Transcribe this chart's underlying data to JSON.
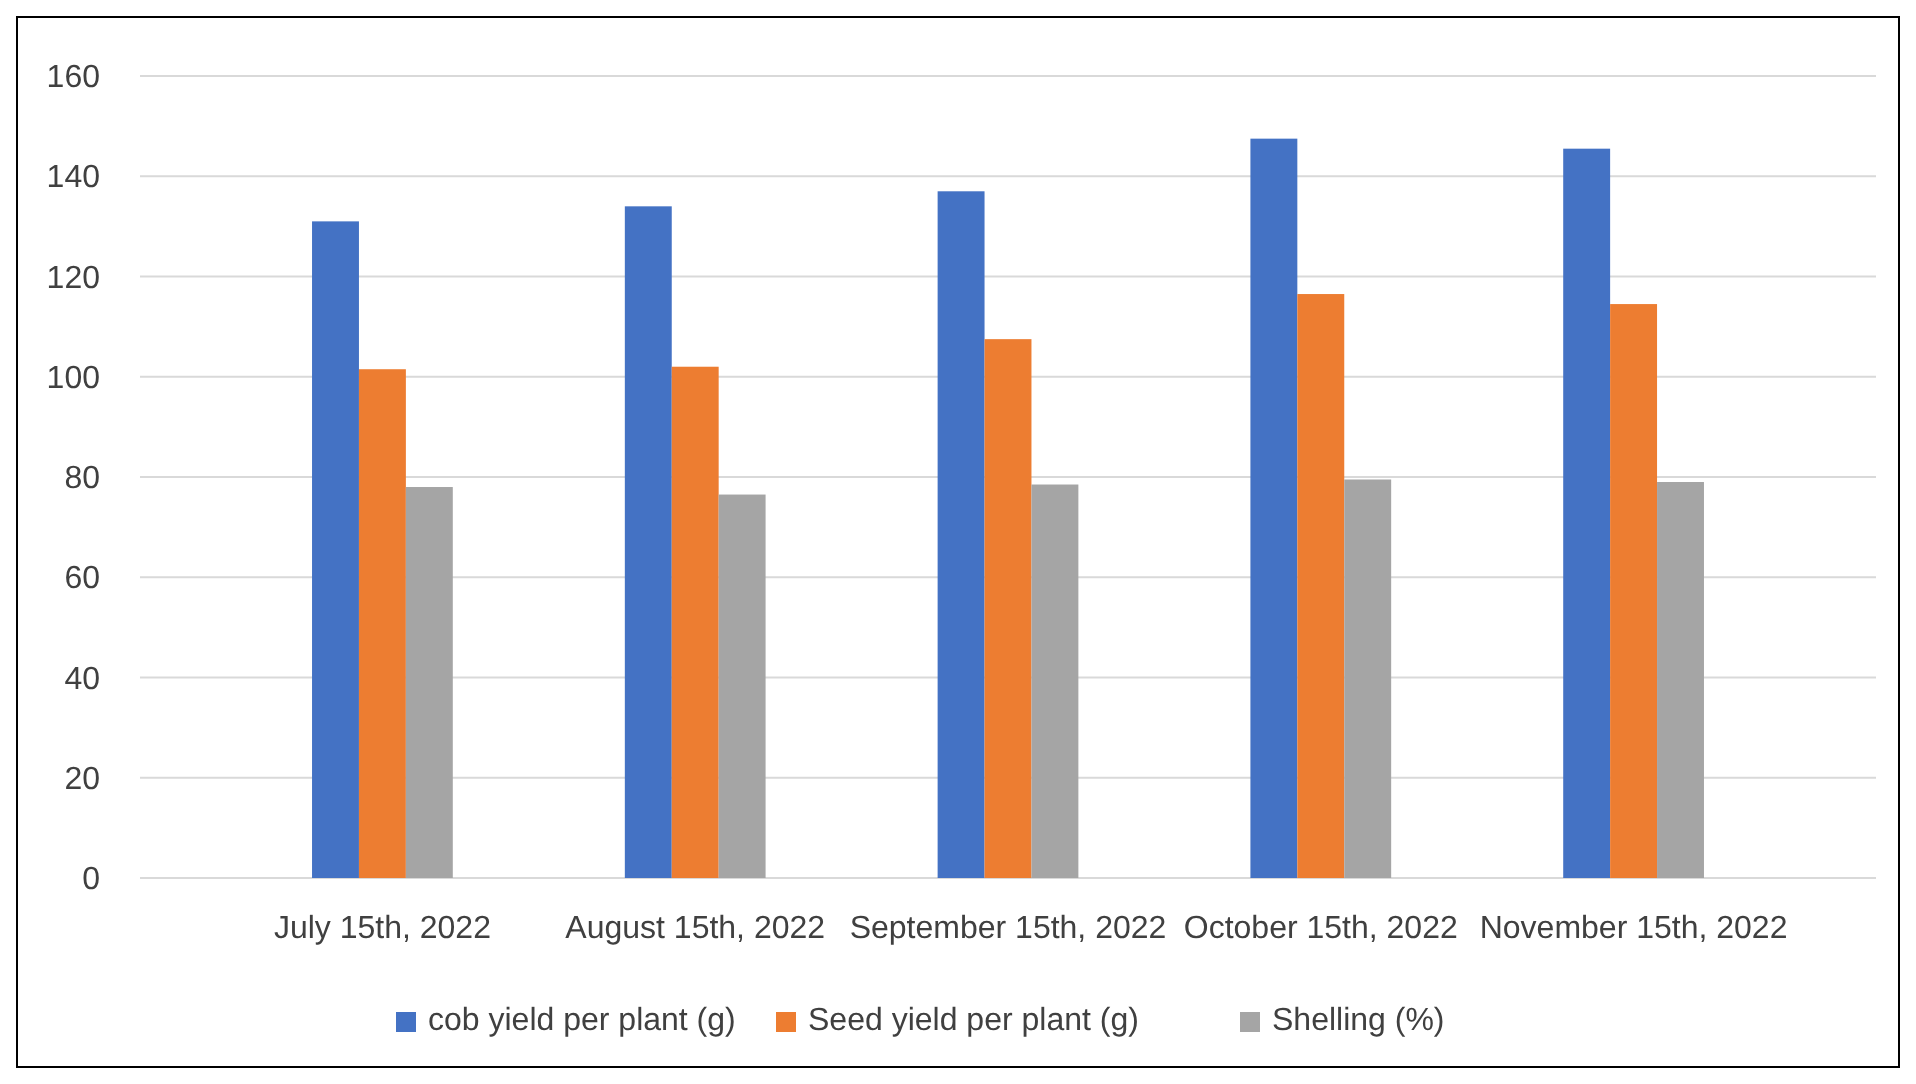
{
  "chart_data": {
    "type": "bar",
    "categories": [
      "July 15th, 2022",
      "August 15th, 2022",
      "September 15th, 2022",
      "October 15th, 2022",
      "November 15th, 2022"
    ],
    "series": [
      {
        "name": "cob yield per plant (g)",
        "color": "#4472c4",
        "values": [
          131,
          134,
          137,
          147.5,
          145.5
        ]
      },
      {
        "name": "Seed yield per plant (g)",
        "color": "#ed7d31",
        "values": [
          101.5,
          102,
          107.5,
          116.5,
          114.5
        ]
      },
      {
        "name": "Shelling (%)",
        "color": "#a5a5a5",
        "values": [
          78,
          76.5,
          78.5,
          79.5,
          79
        ]
      }
    ],
    "ylim": [
      0,
      160
    ],
    "yticks": [
      0,
      20,
      40,
      60,
      80,
      100,
      120,
      140,
      160
    ],
    "grid": "y",
    "legend": "bottom"
  }
}
